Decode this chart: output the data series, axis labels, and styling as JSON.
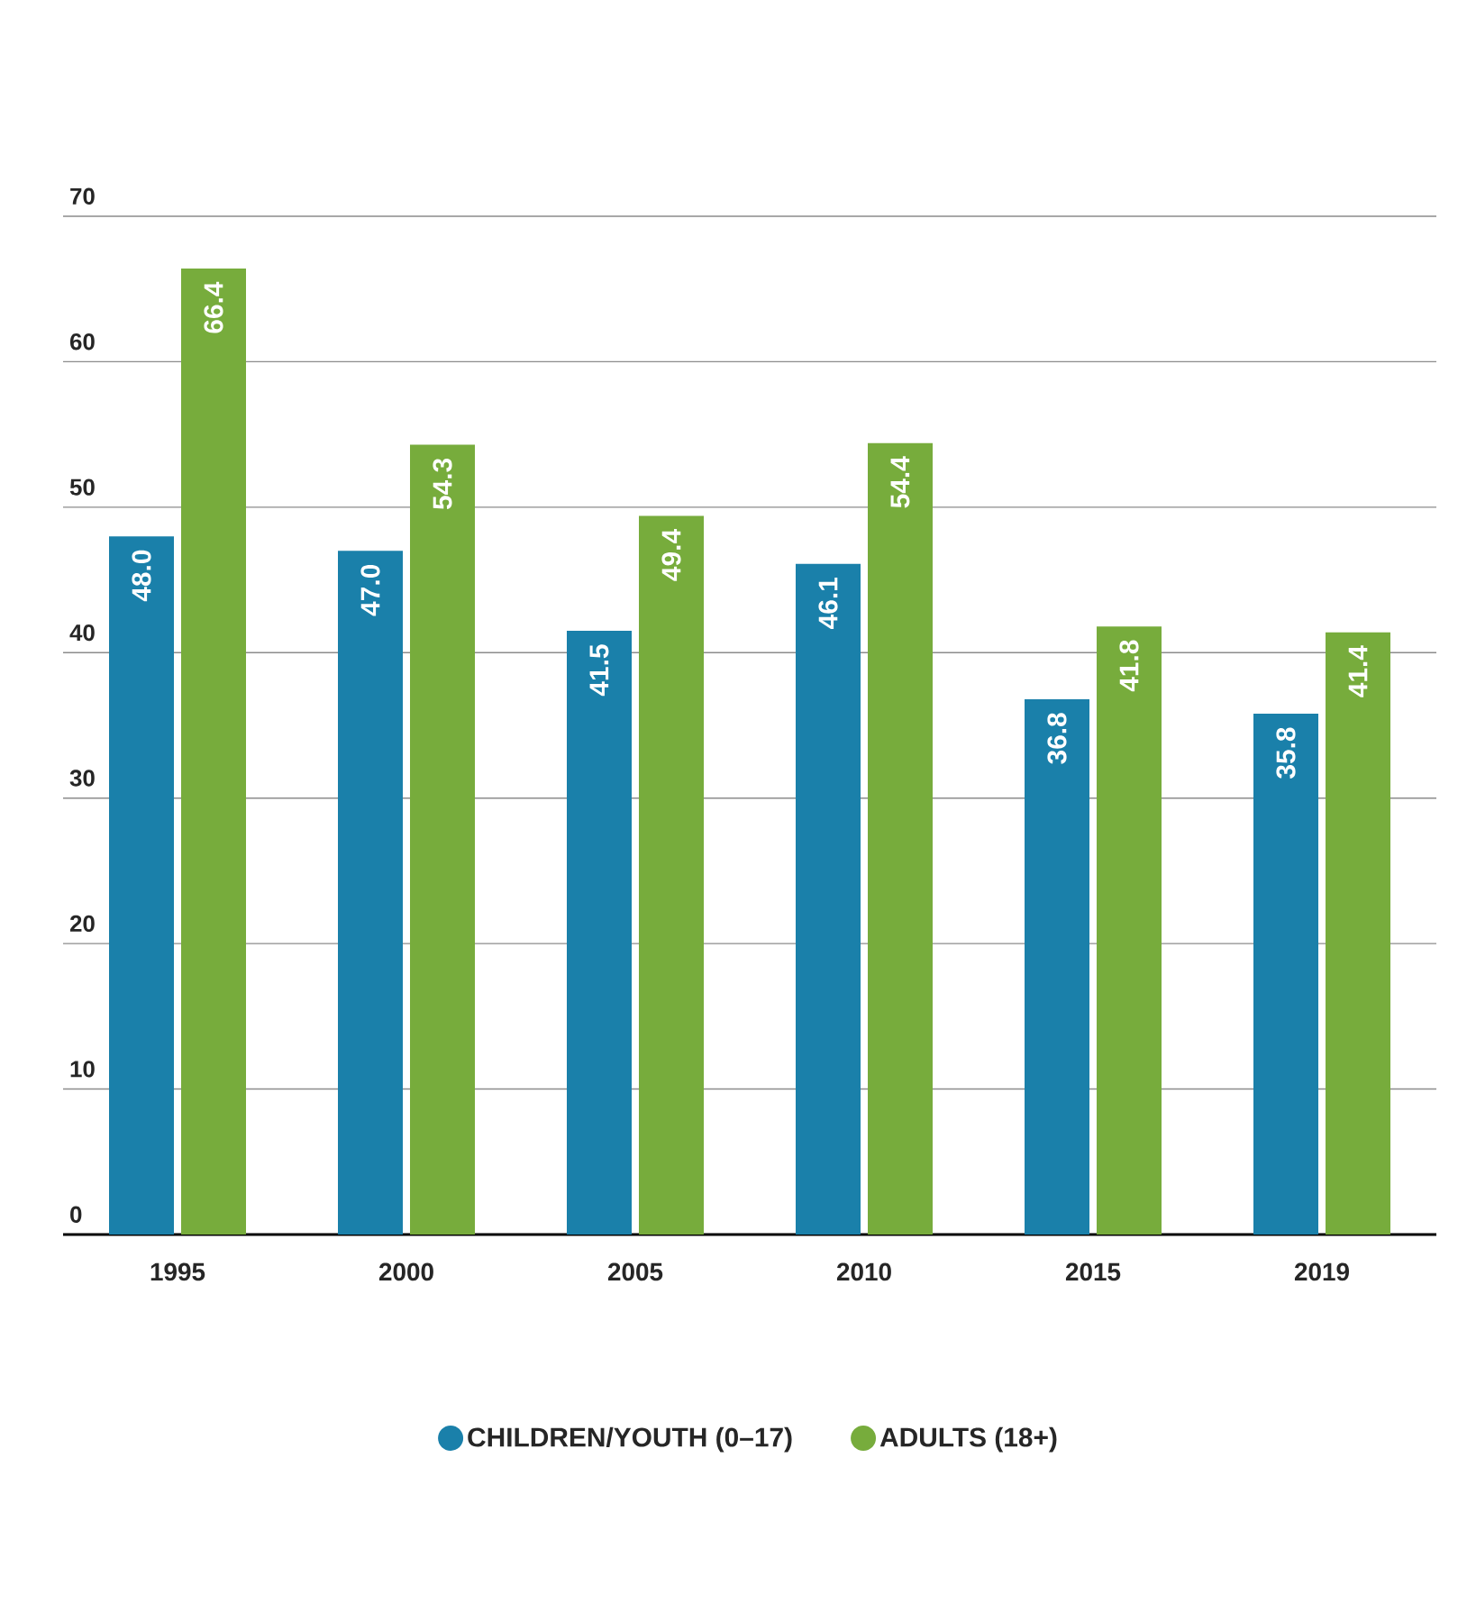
{
  "chart_data": {
    "type": "bar",
    "categories": [
      "1995",
      "2000",
      "2005",
      "2010",
      "2015",
      "2019"
    ],
    "series": [
      {
        "name": "CHILDREN/YOUTH (0–17)",
        "color": "#1a80aa",
        "values": [
          48.0,
          47.0,
          41.5,
          46.1,
          36.8,
          35.8
        ],
        "value_labels": [
          "48.0",
          "47.0",
          "41.5",
          "46.1",
          "36.8",
          "35.8"
        ]
      },
      {
        "name": "ADULTS (18+)",
        "color": "#77ac3c",
        "values": [
          66.4,
          54.3,
          49.4,
          54.4,
          41.8,
          41.4
        ],
        "value_labels": [
          "66.4",
          "54.3",
          "49.4",
          "54.4",
          "41.8",
          "41.4"
        ]
      }
    ],
    "ylim": [
      0,
      70
    ],
    "yticks": [
      0,
      10,
      20,
      30,
      40,
      50,
      60,
      70
    ],
    "grid": "y",
    "legend": "bottom"
  }
}
